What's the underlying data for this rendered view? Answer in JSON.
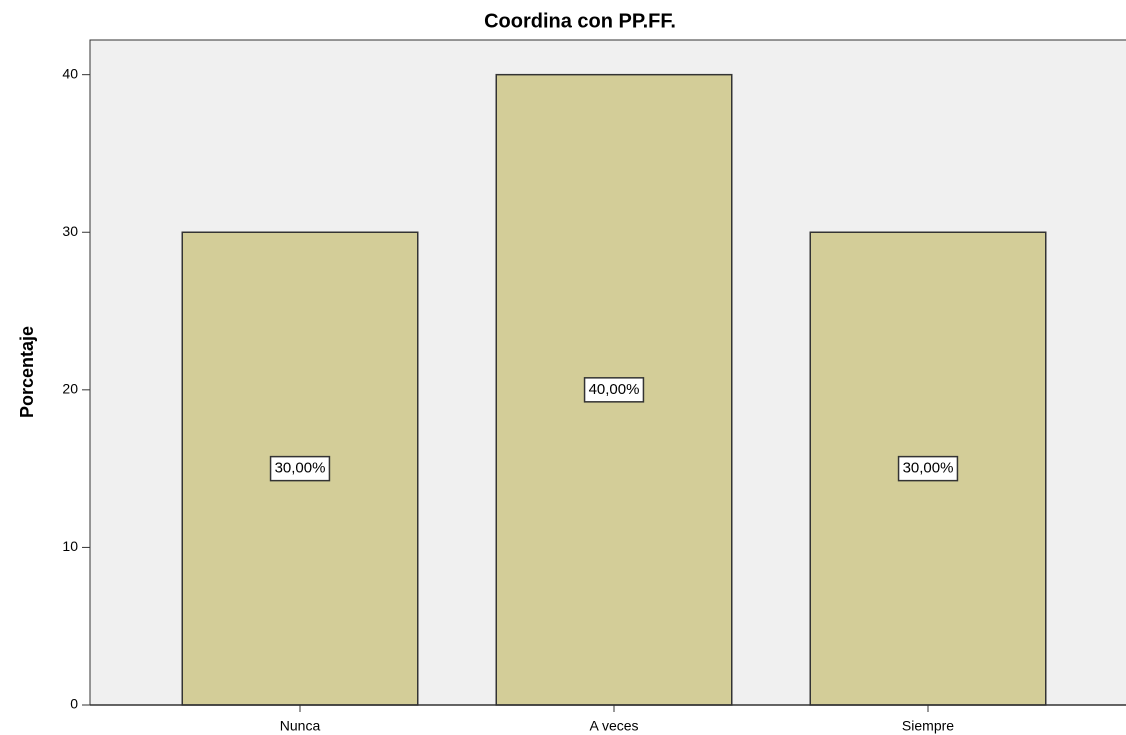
{
  "chart_data": {
    "type": "bar",
    "title": "Coordina con PP.FF.",
    "y_label": "Porcentaje",
    "categories": [
      "Nunca",
      "A veces",
      "Siempre"
    ],
    "values": [
      30,
      40,
      30
    ],
    "value_labels": [
      "30,00%",
      "40,00%",
      "30,00%"
    ],
    "color": "#d3cd98",
    "ylim": [
      0,
      42.2
    ],
    "yticks": [
      0,
      10,
      20,
      30,
      40
    ]
  }
}
